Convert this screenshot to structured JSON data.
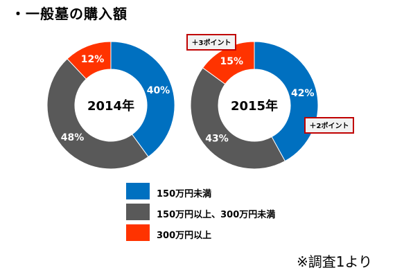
{
  "heading": "・一般墓の購入額",
  "chart_data": [
    {
      "type": "pie",
      "center_label": "2014年",
      "slices": [
        {
          "label": "150万円未満",
          "value": 40,
          "value_label": "40%",
          "color": "#0070c0"
        },
        {
          "label": "150万円以上、300万円未満",
          "value": 48,
          "value_label": "48%",
          "color": "#595959"
        },
        {
          "label": "300万円以上",
          "value": 12,
          "value_label": "12%",
          "color": "#ff3300"
        }
      ],
      "callouts": []
    },
    {
      "type": "pie",
      "center_label": "2015年",
      "slices": [
        {
          "label": "150万円未満",
          "value": 42,
          "value_label": "42%",
          "color": "#0070c0"
        },
        {
          "label": "150万円以上、300万円未満",
          "value": 43,
          "value_label": "43%",
          "color": "#595959"
        },
        {
          "label": "300万円以上",
          "value": 15,
          "value_label": "15%",
          "color": "#ff3300"
        }
      ],
      "callouts": [
        "＋3ポイント",
        "＋2ポイント"
      ]
    }
  ],
  "legend": [
    {
      "label": "150万円未満",
      "color": "#0070c0"
    },
    {
      "label": "150万円以上、300万円未満",
      "color": "#595959"
    },
    {
      "label": "300万円以上",
      "color": "#ff3300"
    }
  ],
  "source_note": "※調査1より"
}
